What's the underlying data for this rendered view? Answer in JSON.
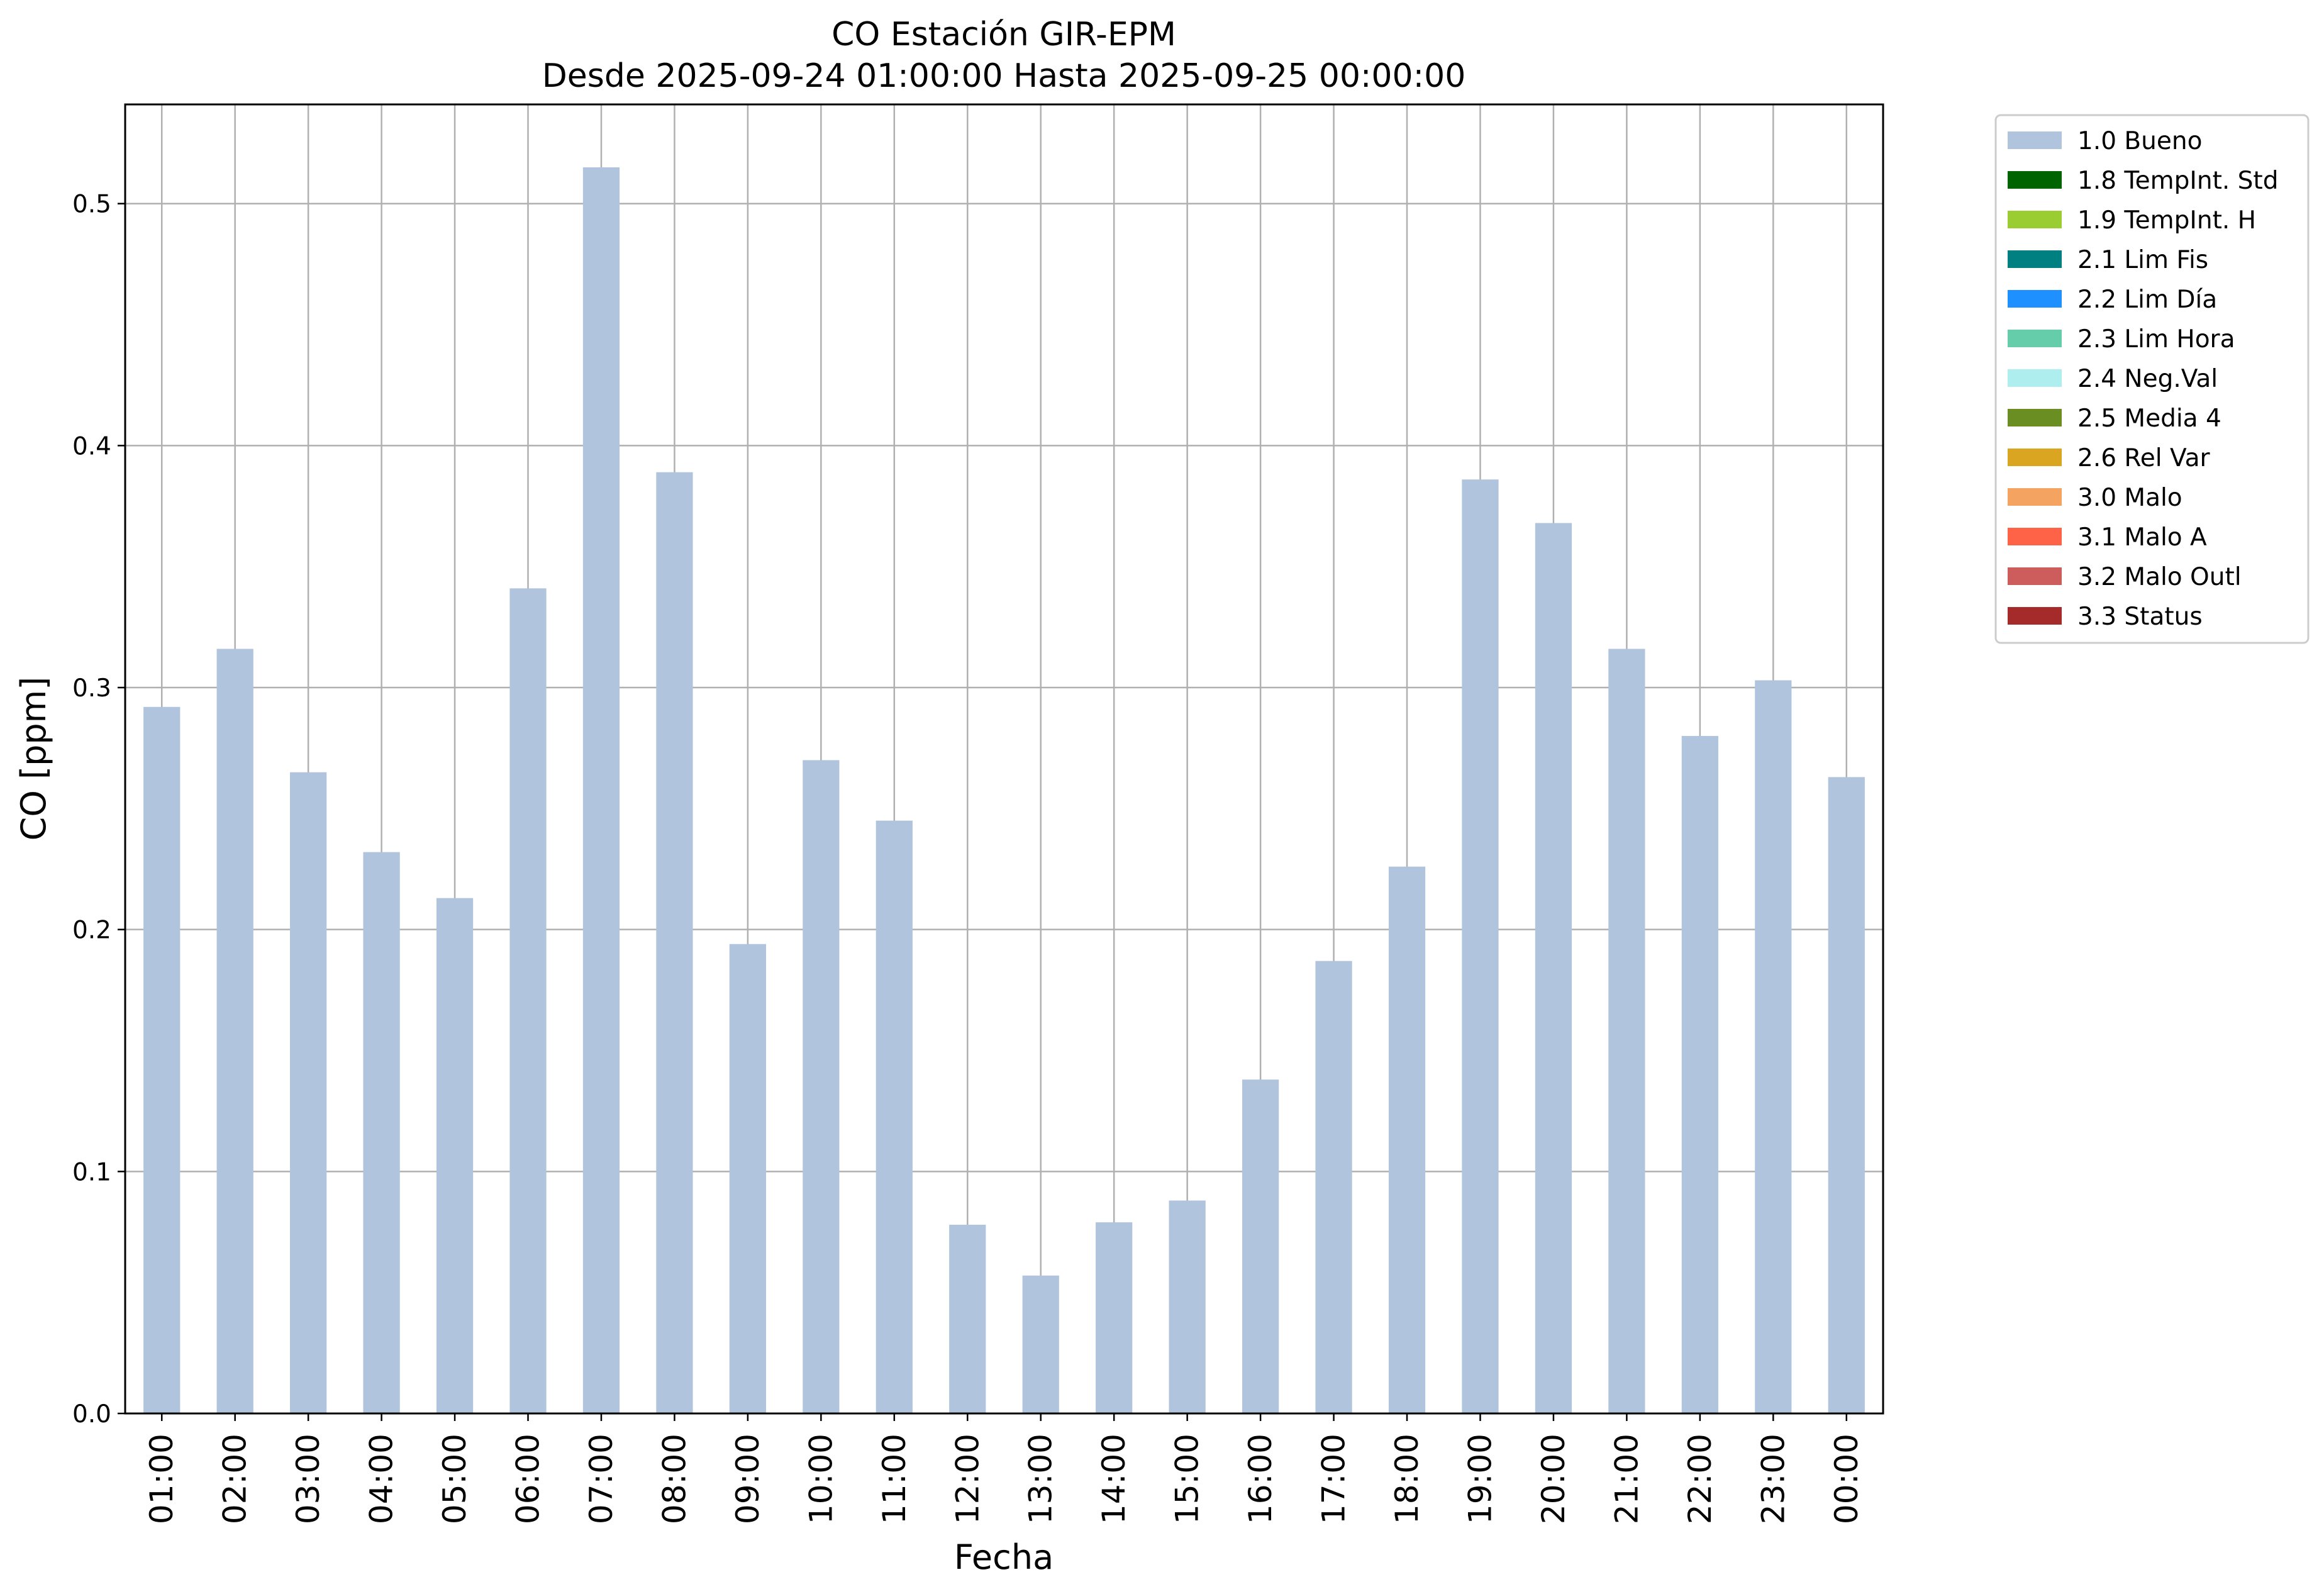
{
  "chart_data": {
    "type": "bar",
    "title": "CO Estación GIR-EPM",
    "subtitle": "Desde 2025-09-24 01:00:00 Hasta 2025-09-25 00:00:00",
    "xlabel": "Fecha",
    "ylabel": "CO [ppm]",
    "ylim": [
      0,
      0.541
    ],
    "yticks": [
      "0.0",
      "0.1",
      "0.2",
      "0.3",
      "0.4",
      "0.5"
    ],
    "grid": true,
    "legend_position": "outside-top-right",
    "categories": [
      "01:00",
      "02:00",
      "03:00",
      "04:00",
      "05:00",
      "06:00",
      "07:00",
      "08:00",
      "09:00",
      "10:00",
      "11:00",
      "12:00",
      "13:00",
      "14:00",
      "15:00",
      "16:00",
      "17:00",
      "18:00",
      "19:00",
      "20:00",
      "21:00",
      "22:00",
      "23:00",
      "00:00"
    ],
    "series": [
      {
        "name": "1.0 Bueno",
        "color": "#b0c4de",
        "values": [
          0.292,
          0.316,
          0.265,
          0.232,
          0.213,
          0.341,
          0.515,
          0.389,
          0.194,
          0.27,
          0.245,
          0.078,
          0.057,
          0.079,
          0.088,
          0.138,
          0.187,
          0.226,
          0.386,
          0.368,
          0.316,
          0.28,
          0.303,
          0.263
        ]
      }
    ],
    "legend": [
      {
        "label": "1.0 Bueno",
        "color": "#b0c4de"
      },
      {
        "label": "1.8 TempInt. Std",
        "color": "#006400"
      },
      {
        "label": "1.9 TempInt. H",
        "color": "#9acd32"
      },
      {
        "label": "2.1 Lim Fis",
        "color": "#008080"
      },
      {
        "label": "2.2 Lim Día",
        "color": "#1e90ff"
      },
      {
        "label": "2.3 Lim Hora",
        "color": "#66cdaa"
      },
      {
        "label": "2.4 Neg.Val",
        "color": "#afeeee"
      },
      {
        "label": "2.5 Media 4",
        "color": "#6b8e23"
      },
      {
        "label": "2.6 Rel Var",
        "color": "#daa520"
      },
      {
        "label": "3.0 Malo",
        "color": "#f4a460"
      },
      {
        "label": "3.1 Malo A",
        "color": "#ff6347"
      },
      {
        "label": "3.2 Malo Outl",
        "color": "#cd5c5c"
      },
      {
        "label": "3.3 Status",
        "color": "#a52a2a"
      }
    ]
  }
}
